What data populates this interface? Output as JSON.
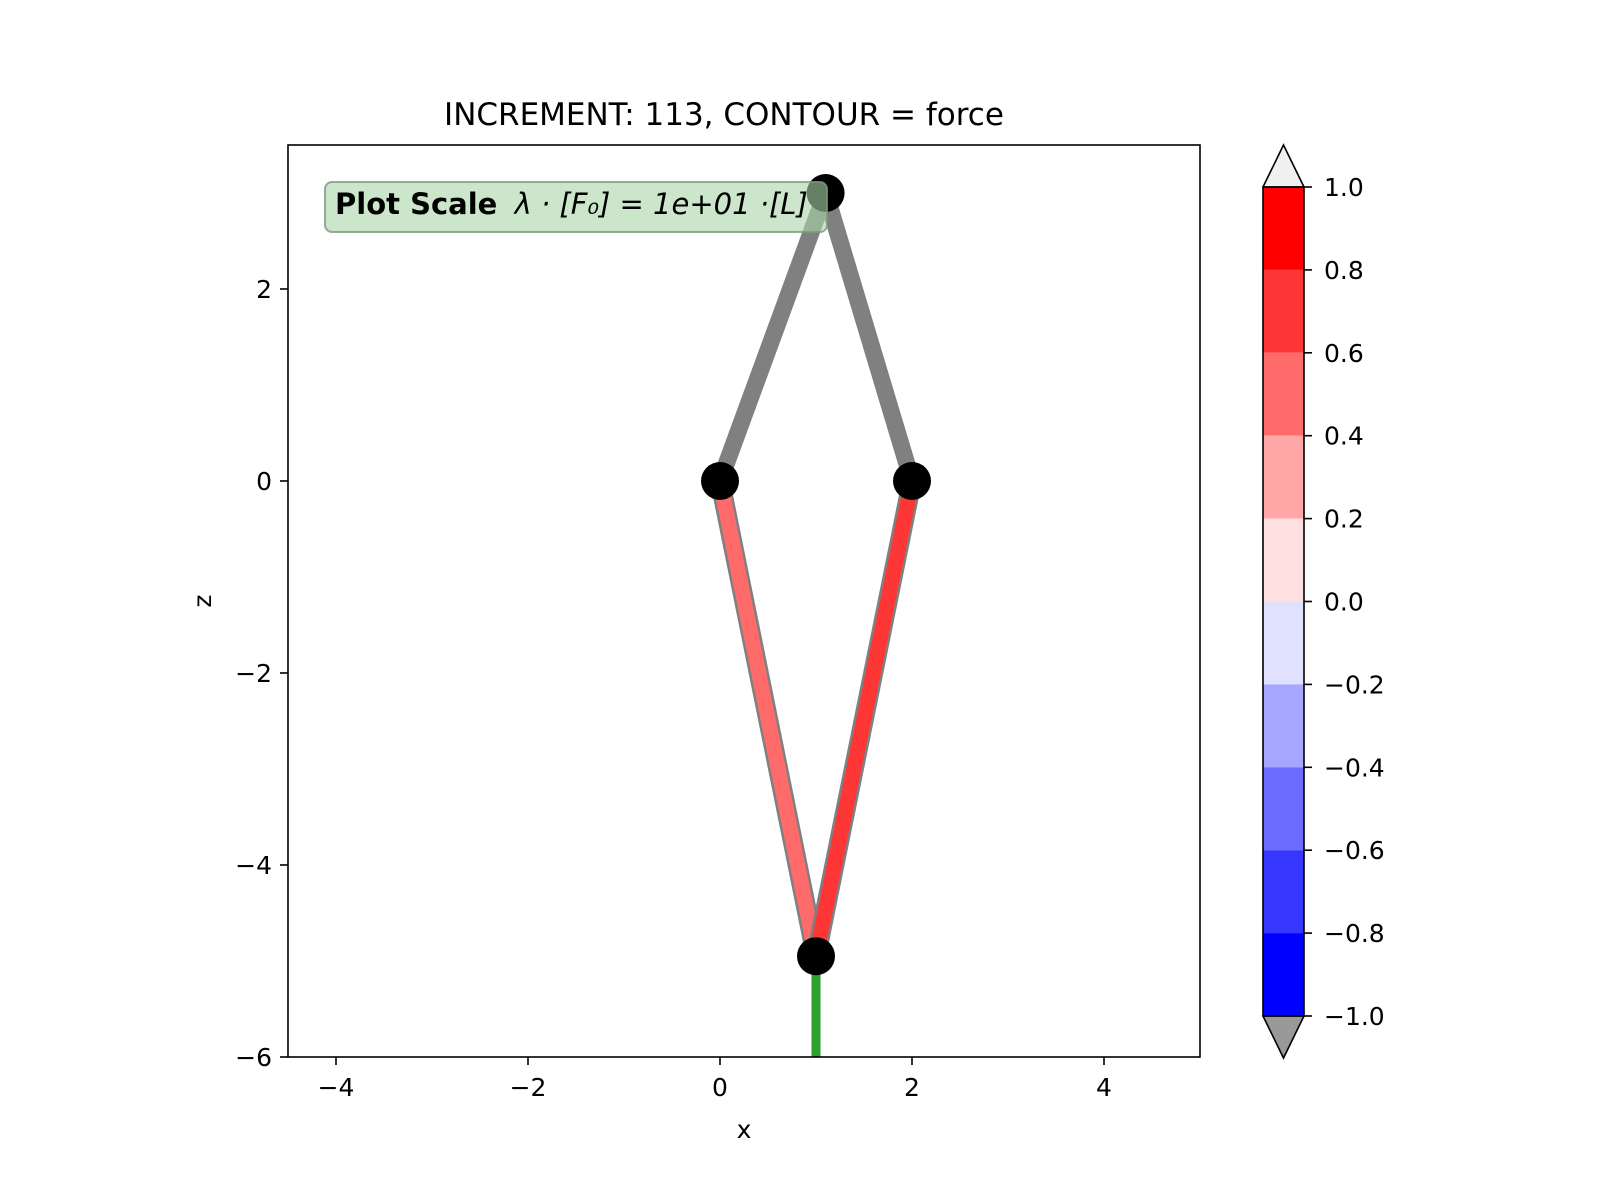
{
  "chart_data": {
    "type": "line",
    "title": "INCREMENT: 113, CONTOUR = force",
    "xlabel": "x",
    "ylabel": "z",
    "xlim": [
      -4.5,
      5.0
    ],
    "ylim": [
      -6.0,
      3.5
    ],
    "x_ticks": [
      -4,
      -2,
      0,
      2,
      4
    ],
    "x_tick_labels": [
      "−4",
      "−2",
      "0",
      "2",
      "4"
    ],
    "y_ticks": [
      -6,
      -4,
      -2,
      0,
      2
    ],
    "y_tick_labels": [
      "−6",
      "−4",
      "−2",
      "0",
      "2"
    ],
    "grid": false,
    "scale_box": {
      "bold": "Plot Scale",
      "formula": "λ · [F₀] =  1e+01 ·[L]"
    },
    "nodes": [
      {
        "x": 0.0,
        "z": 0.0
      },
      {
        "x": 1.1,
        "z": 3.0
      },
      {
        "x": 2.0,
        "z": 0.0
      },
      {
        "x": 1.0,
        "z": -4.95
      }
    ],
    "members": [
      {
        "from": [
          0.0,
          0.0
        ],
        "to": [
          1.1,
          3.0
        ],
        "value": 0.0,
        "color": "#808080",
        "role": "undeformed"
      },
      {
        "from": [
          1.1,
          3.0
        ],
        "to": [
          2.0,
          0.0
        ],
        "value": 0.0,
        "color": "#808080",
        "role": "undeformed"
      },
      {
        "from": [
          0.0,
          0.0
        ],
        "to": [
          1.0,
          -4.95
        ],
        "value": 0.5,
        "color": "#ff6b6b",
        "role": "force"
      },
      {
        "from": [
          2.0,
          0.0
        ],
        "to": [
          1.0,
          -4.95
        ],
        "value": 0.7,
        "color": "#ff3636",
        "role": "force"
      }
    ],
    "load": {
      "from": [
        1.0,
        -4.95
      ],
      "to": [
        1.0,
        -6.0
      ],
      "color": "#2ca02c"
    },
    "colorbar": {
      "range": [
        -1.0,
        1.0
      ],
      "ticks": [
        1.0,
        0.8,
        0.6,
        0.4,
        0.2,
        0.0,
        -0.2,
        -0.4,
        -0.6,
        -0.8,
        -1.0
      ],
      "tick_labels": [
        "1.0",
        "0.8",
        "0.6",
        "0.4",
        "0.2",
        "0.0",
        "−0.2",
        "−0.4",
        "−0.6",
        "−0.8",
        "−1.0"
      ],
      "bands": [
        {
          "from": 0.8,
          "to": 1.0,
          "color": "#ff0000"
        },
        {
          "from": 0.6,
          "to": 0.8,
          "color": "#ff3636"
        },
        {
          "from": 0.4,
          "to": 0.6,
          "color": "#ff6b6b"
        },
        {
          "from": 0.2,
          "to": 0.4,
          "color": "#ffa6a6"
        },
        {
          "from": 0.0,
          "to": 0.2,
          "color": "#ffe0e0"
        },
        {
          "from": -0.2,
          "to": 0.0,
          "color": "#e0e0ff"
        },
        {
          "from": -0.4,
          "to": -0.2,
          "color": "#a6a6ff"
        },
        {
          "from": -0.6,
          "to": -0.4,
          "color": "#6b6bff"
        },
        {
          "from": -0.8,
          "to": -0.6,
          "color": "#3636ff"
        },
        {
          "from": -1.0,
          "to": -0.8,
          "color": "#0000ff"
        }
      ],
      "over_color": "#f0f0f0",
      "under_color": "#999999"
    }
  }
}
